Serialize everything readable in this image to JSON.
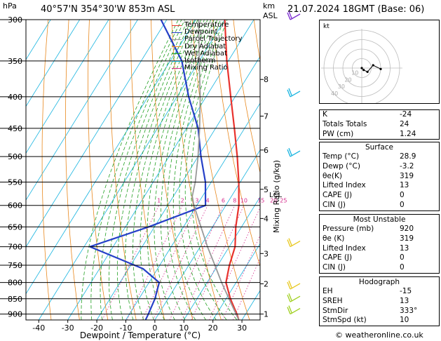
{
  "header": {
    "location": "40°57'N  354°30'W  853m  ASL",
    "datetime": "21.07.2024  18GMT  (Base: 06)",
    "hpa_unit": "hPa",
    "km_unit": "km",
    "asl_unit": "ASL"
  },
  "footer": {
    "copyright": "© weatheronline.co.uk"
  },
  "chart_data": {
    "type": "line",
    "title": "",
    "xlabel": "Dewpoint / Temperature (°C)",
    "ylabel": "Mixing Ratio (g/kg)",
    "x_ticks": [
      -40,
      -30,
      -20,
      -10,
      0,
      10,
      20,
      30
    ],
    "xlim": [
      -42,
      38
    ],
    "pressure_ticks": [
      300,
      350,
      400,
      450,
      500,
      550,
      600,
      650,
      700,
      750,
      800,
      850,
      900
    ],
    "ylim_hpa": [
      300,
      920
    ],
    "y_scale": "log",
    "km_ticks": [
      {
        "label": "8",
        "p": 375
      },
      {
        "label": "7",
        "p": 430
      },
      {
        "label": "6",
        "p": 488
      },
      {
        "label": "5",
        "p": 565
      },
      {
        "label": "4",
        "p": 630
      },
      {
        "label": "3",
        "p": 718
      },
      {
        "label": "2",
        "p": 804
      },
      {
        "label": "1",
        "p": 900
      }
    ],
    "lcl_label": "LCL",
    "lcl_p": 580,
    "mixing_ratio_labels": [
      "1",
      "2",
      "3",
      "4",
      "6",
      "8",
      "10",
      "15",
      "20",
      "25"
    ],
    "mixing_ratio_values": [
      1,
      2,
      3,
      4,
      6,
      8,
      10,
      15,
      20,
      25
    ],
    "legend_position": "top-left",
    "legend": [
      {
        "name": "Temperature",
        "color": "#e8322d"
      },
      {
        "name": "Dewpoint",
        "color": "#2640c8"
      },
      {
        "name": "Parcel Trajectory",
        "color": "#999999"
      },
      {
        "name": "Dry Adiabat",
        "color": "#e8881e"
      },
      {
        "name": "Wet Adiabat",
        "color": "#22a022"
      },
      {
        "name": "Isotherm",
        "color": "#18b4e0"
      },
      {
        "name": "Mixing Ratio",
        "color": "#d62a8c"
      }
    ],
    "series": [
      {
        "name": "Temperature",
        "color": "#e8322d",
        "p": [
          920,
          900,
          850,
          800,
          750,
          700,
          650,
          600,
          550,
          500,
          450,
          400,
          350,
          300
        ],
        "t": [
          28.9,
          27,
          21.5,
          16.5,
          14,
          12,
          8,
          4.5,
          -0.5,
          -6.5,
          -13.5,
          -21.5,
          -30.5,
          -40
        ]
      },
      {
        "name": "Dewpoint",
        "color": "#2640c8",
        "p": [
          920,
          900,
          850,
          800,
          760,
          700,
          650,
          600,
          550,
          500,
          450,
          400,
          350,
          300
        ],
        "t": [
          -3.2,
          -3.5,
          -4.5,
          -6.5,
          -15,
          -38,
          -22,
          -7,
          -12,
          -19,
          -26,
          -36,
          -46,
          -62
        ]
      },
      {
        "name": "Parcel Trajectory",
        "color": "#999999",
        "p": [
          920,
          850,
          800,
          750,
          700,
          650,
          600,
          580,
          550,
          500,
          450,
          400,
          350,
          300
        ],
        "t": [
          28.9,
          21,
          15,
          9,
          2.5,
          -4,
          -11,
          -13.5,
          -15.5,
          -20,
          -25.5,
          -32,
          -40,
          -49
        ]
      }
    ],
    "hodograph_label": "kt",
    "hodograph_ring_labels": [
      "10",
      "20",
      "30",
      "40"
    ],
    "hodograph_points": [
      [
        0,
        0
      ],
      [
        2,
        2
      ],
      [
        6,
        4
      ],
      [
        12,
        -3
      ],
      [
        20,
        1
      ]
    ]
  },
  "indices": [
    {
      "label": "K",
      "value": "-24"
    },
    {
      "label": "Totals Totals",
      "value": "24"
    },
    {
      "label": "PW (cm)",
      "value": "1.24"
    }
  ],
  "surface": {
    "title": "Surface",
    "rows": [
      {
        "label": "Temp (°C)",
        "value": "28.9"
      },
      {
        "label": "Dewp (°C)",
        "value": "-3.2"
      },
      {
        "label": "θe(K)",
        "value": "319"
      },
      {
        "label": "Lifted Index",
        "value": "13"
      },
      {
        "label": "CAPE (J)",
        "value": "0"
      },
      {
        "label": "CIN (J)",
        "value": "0"
      }
    ]
  },
  "most_unstable": {
    "title": "Most Unstable",
    "rows": [
      {
        "label": "Pressure (mb)",
        "value": "920"
      },
      {
        "label": "θe (K)",
        "value": "319"
      },
      {
        "label": "Lifted Index",
        "value": "13"
      },
      {
        "label": "CAPE (J)",
        "value": "0"
      },
      {
        "label": "CIN (J)",
        "value": "0"
      }
    ]
  },
  "hodograph_table": {
    "title": "Hodograph",
    "rows": [
      {
        "label": "EH",
        "value": "-15"
      },
      {
        "label": "SREH",
        "value": "13"
      },
      {
        "label": "StmDir",
        "value": "333°"
      },
      {
        "label": "StmSpd (kt)",
        "value": "10"
      }
    ]
  }
}
